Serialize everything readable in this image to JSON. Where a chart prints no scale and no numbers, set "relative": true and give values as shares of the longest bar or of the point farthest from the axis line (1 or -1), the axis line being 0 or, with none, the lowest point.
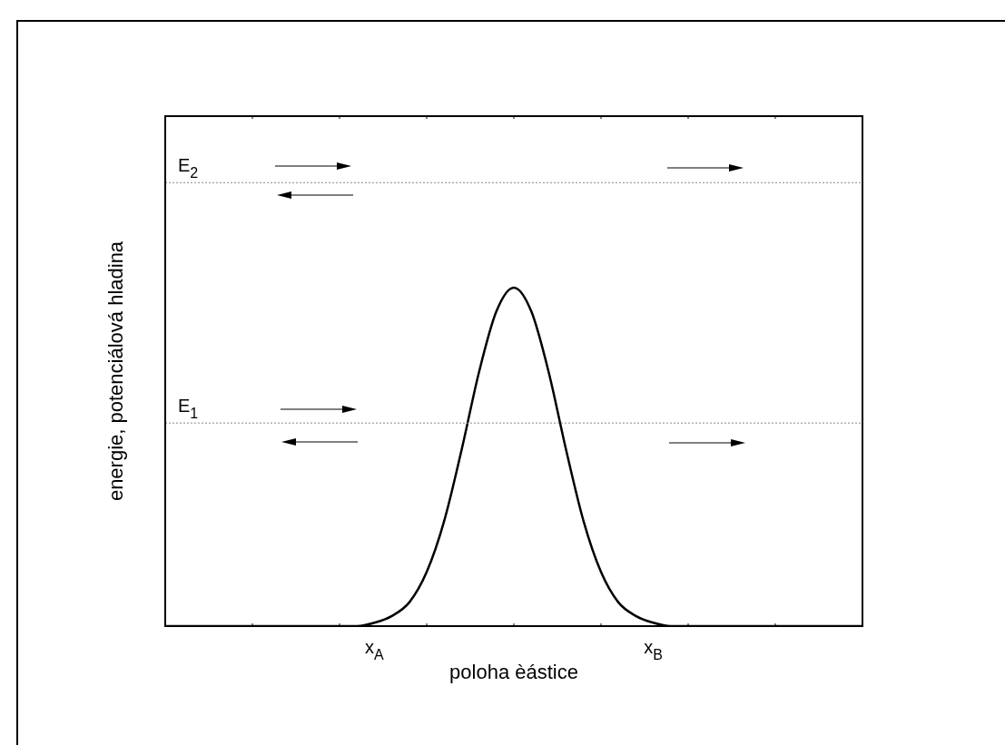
{
  "chart_data": {
    "type": "line",
    "relative": true,
    "xlabel": "poloha èástice",
    "ylabel": "energie, potenciálová hladina",
    "categories": [
      null,
      null,
      null,
      null,
      null,
      null,
      null,
      null,
      null,
      null,
      null,
      null,
      "x$_{A}$",
      null,
      null,
      null,
      null,
      null,
      null,
      null,
      null,
      null,
      null,
      null,
      null,
      null,
      null,
      null,
      "x$_{B}$",
      null,
      null,
      null,
      null,
      null,
      null,
      null,
      null,
      null,
      null,
      null,
      null
    ],
    "series": [
      {
        "color": "#000000",
        "values": [
          0,
          0,
          0,
          0,
          0,
          0,
          0,
          0,
          0,
          0,
          0,
          0,
          0.01,
          0.03,
          0.07,
          0.16,
          0.31,
          0.52,
          0.75,
          0.93,
          1,
          0.93,
          0.75,
          0.52,
          0.31,
          0.16,
          0.07,
          0.03,
          0.01,
          0,
          0,
          0,
          0,
          0,
          0,
          0,
          0,
          0,
          0,
          0,
          0
        ]
      }
    ],
    "ref_lines": [
      {
        "axis": "y",
        "value": 0.6,
        "label": "E$_{1}$",
        "color": "#888888",
        "line_style": "dotted"
      },
      {
        "axis": "y",
        "value": 1.31,
        "label": "E$_{2}$",
        "color": "#888888",
        "line_style": "dotted"
      }
    ],
    "marker": "none",
    "line_style": "solid",
    "legend": false
  }
}
